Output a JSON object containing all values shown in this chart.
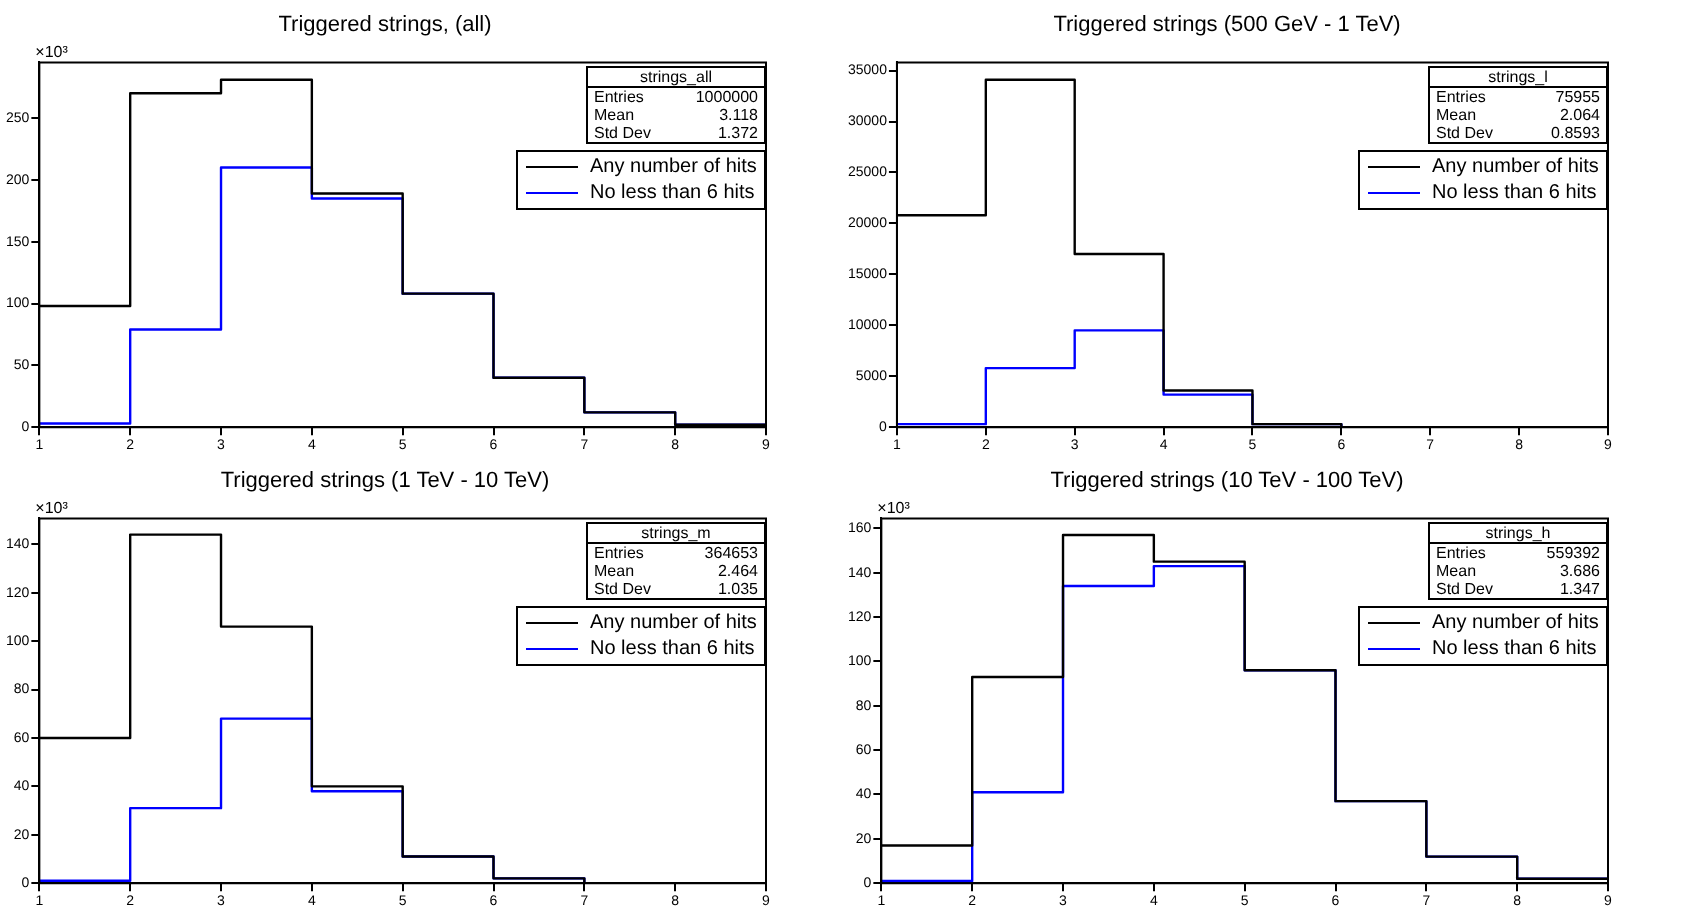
{
  "chart_data": [
    {
      "type": "histogram",
      "title": "Triggered strings, (all)",
      "ylabel": "×10³",
      "bins": [
        1,
        2,
        3,
        4,
        5,
        6,
        7,
        8,
        9
      ],
      "xlim": [
        1,
        9
      ],
      "xticks": [
        1,
        2,
        3,
        4,
        5,
        6,
        7,
        8,
        9
      ],
      "ylim": [
        0,
        295
      ],
      "yticks": [
        0,
        50,
        100,
        150,
        200,
        250
      ],
      "grid": false,
      "legend": "top right",
      "annotations": [
        "strings_all",
        "Entries",
        "1000000",
        "Mean",
        "3.118",
        "Std Dev",
        "1.372"
      ],
      "series": [
        {
          "name": "Any number of hits",
          "color": "#000000",
          "values": [
            98,
            270,
            281,
            189,
            108,
            40,
            12,
            2
          ]
        },
        {
          "name": "No less than 6 hits",
          "color": "#0000ff",
          "values": [
            3,
            79,
            210,
            185,
            108,
            40,
            12,
            2
          ]
        }
      ]
    },
    {
      "type": "histogram",
      "title": "Triggered strings (500 GeV - 1 TeV)",
      "bins": [
        1,
        2,
        3,
        4,
        5,
        6,
        7,
        8,
        9
      ],
      "xlim": [
        1,
        9
      ],
      "xticks": [
        1,
        2,
        3,
        4,
        5,
        6,
        7,
        8,
        9
      ],
      "ylim": [
        0,
        35800
      ],
      "yticks": [
        0,
        5000,
        10000,
        15000,
        20000,
        25000,
        30000,
        35000
      ],
      "grid": false,
      "legend": "top right",
      "annotations": [
        "strings_l",
        "Entries",
        "75955",
        "Mean",
        "2.064",
        "Std Dev",
        "0.8593"
      ],
      "series": [
        {
          "name": "Any number of hits",
          "color": "#000000",
          "values": [
            20800,
            34100,
            17000,
            3600,
            300,
            0,
            0,
            0
          ]
        },
        {
          "name": "No less than 6 hits",
          "color": "#0000ff",
          "values": [
            300,
            5800,
            9500,
            3200,
            300,
            0,
            0,
            0
          ]
        }
      ]
    },
    {
      "type": "histogram",
      "title": "Triggered strings (1 TeV - 10 TeV)",
      "ylabel": "×10³",
      "bins": [
        1,
        2,
        3,
        4,
        5,
        6,
        7,
        8,
        9
      ],
      "xlim": [
        1,
        9
      ],
      "xticks": [
        1,
        2,
        3,
        4,
        5,
        6,
        7,
        8,
        9
      ],
      "ylim": [
        0,
        150.7
      ],
      "yticks": [
        0,
        20,
        40,
        60,
        80,
        100,
        120,
        140
      ],
      "grid": false,
      "legend": "top right",
      "annotations": [
        "strings_m",
        "Entries",
        "364653",
        "Mean",
        "2.464",
        "Std Dev",
        "1.035"
      ],
      "series": [
        {
          "name": "Any number of hits",
          "color": "#000000",
          "values": [
            60,
            144,
            106,
            40,
            11,
            2,
            0,
            0
          ]
        },
        {
          "name": "No less than 6 hits",
          "color": "#0000ff",
          "values": [
            1,
            31,
            68,
            38,
            11,
            2,
            0,
            0
          ]
        }
      ]
    },
    {
      "type": "histogram",
      "title": "Triggered strings (10 TeV - 100 TeV)",
      "ylabel": "×10³",
      "bins": [
        1,
        2,
        3,
        4,
        5,
        6,
        7,
        8,
        9
      ],
      "xlim": [
        1,
        9
      ],
      "xticks": [
        1,
        2,
        3,
        4,
        5,
        6,
        7,
        8,
        9
      ],
      "ylim": [
        0,
        164.5
      ],
      "yticks": [
        0,
        20,
        40,
        60,
        80,
        100,
        120,
        140,
        160
      ],
      "grid": false,
      "legend": "top right",
      "annotations": [
        "strings_h",
        "Entries",
        "559392",
        "Mean",
        "3.686",
        "Std Dev",
        "1.347"
      ],
      "series": [
        {
          "name": "Any number of hits",
          "color": "#000000",
          "values": [
            17,
            93,
            157,
            145,
            96,
            37,
            12,
            2
          ]
        },
        {
          "name": "No less than 6 hits",
          "color": "#0000ff",
          "values": [
            1,
            41,
            134,
            143,
            96,
            37,
            12,
            2
          ]
        }
      ]
    }
  ]
}
